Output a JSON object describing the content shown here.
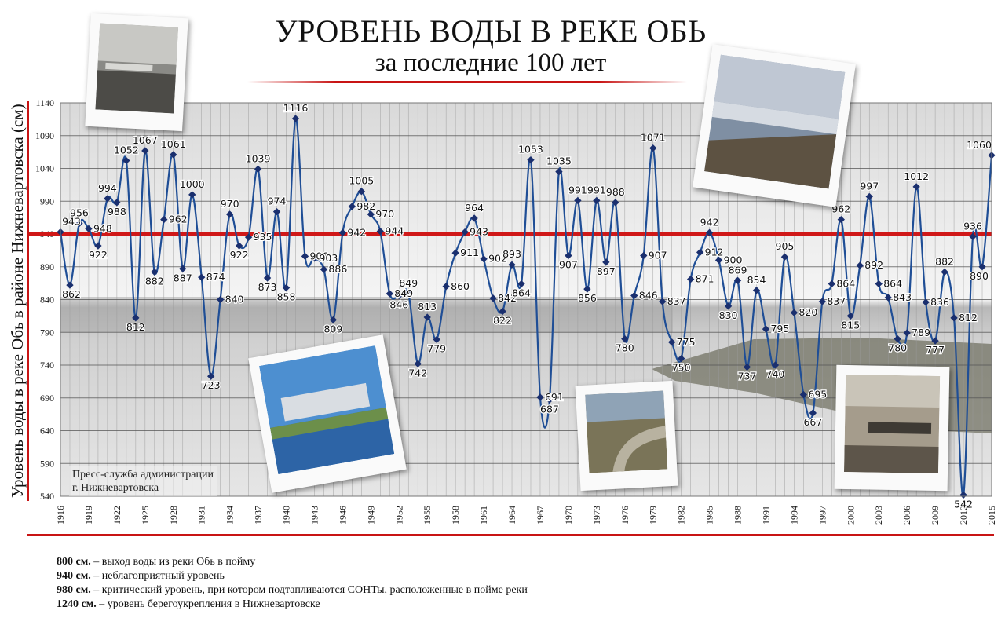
{
  "title": "УРОВЕНЬ ВОДЫ В РЕКЕ ОБЬ",
  "subtitle": "за последние 100 лет",
  "credit": {
    "line1": "Пресс-служба администрации",
    "line2": "г. Нижневартовска"
  },
  "legend": [
    {
      "value": "800 см.",
      "text": " – выход воды из реки Обь в пойму"
    },
    {
      "value": "940 см.",
      "text": " – неблагоприятный уровень"
    },
    {
      "value": "980 см.",
      "text": " – критический уровень, при котором подтапливаются СОНТы, расположенные в пойме реки"
    },
    {
      "value": "1240 см.",
      "text": " – уровень берегоукрепления в Нижневартовске"
    }
  ],
  "colors": {
    "line": "#1f4e96",
    "marker": "#1a2f6e",
    "threshold": "#d01818",
    "accent": "#c81414"
  },
  "chart_data": {
    "type": "line",
    "title": "УРОВЕНЬ ВОДЫ В РЕКЕ ОБЬ за последние 100 лет",
    "xlabel": "",
    "ylabel": "Уровень воды в реке Обь в районе Нижневартовска (см)",
    "ylim": [
      540,
      1140
    ],
    "yticks": [
      540,
      590,
      640,
      690,
      740,
      790,
      840,
      890,
      940,
      990,
      1040,
      1090,
      1140
    ],
    "xlim": [
      1916,
      2015
    ],
    "xticks": [
      1916,
      1919,
      1922,
      1925,
      1928,
      1931,
      1934,
      1937,
      1940,
      1943,
      1946,
      1949,
      1952,
      1955,
      1958,
      1961,
      1964,
      1967,
      1970,
      1973,
      1976,
      1979,
      1982,
      1985,
      1988,
      1991,
      1994,
      1997,
      2000,
      2003,
      2006,
      2009,
      2012,
      2015
    ],
    "grid": true,
    "threshold_line": 940,
    "series": [
      {
        "x": [
          1916,
          1917,
          1918,
          1919,
          1920,
          1921,
          1922,
          1923,
          1924,
          1925,
          1926,
          1927,
          1928,
          1929,
          1930,
          1931,
          1932,
          1933,
          1934,
          1935,
          1936,
          1937,
          1938,
          1939,
          1940,
          1941,
          1942,
          1943,
          1944,
          1945,
          1946,
          1947,
          1948,
          1949,
          1950,
          1951,
          1952,
          1953,
          1954,
          1955,
          1956,
          1957,
          1958,
          1959,
          1960,
          1961,
          1962,
          1963,
          1964,
          1965,
          1966,
          1967,
          1968,
          1969,
          1970,
          1971,
          1972,
          1973,
          1974,
          1975,
          1976,
          1977,
          1978,
          1979,
          1980,
          1981,
          1982,
          1983,
          1984,
          1985,
          1986,
          1987,
          1988,
          1989,
          1990,
          1991,
          1992,
          1993,
          1994,
          1995,
          1996,
          1997,
          1998,
          1999,
          2000,
          2001,
          2002,
          2003,
          2004,
          2005,
          2006,
          2007,
          2008,
          2009,
          2010,
          2011,
          2012,
          2013,
          2014,
          2015
        ],
        "values": [
          943,
          862,
          956,
          948,
          922,
          994,
          988,
          1052,
          812,
          1067,
          882,
          962,
          1061,
          887,
          1000,
          874,
          723,
          840,
          970,
          922,
          935,
          1039,
          873,
          974,
          858,
          1116,
          906,
          903,
          886,
          809,
          942,
          982,
          1005,
          970,
          944,
          849,
          846,
          849,
          742,
          813,
          779,
          860,
          911,
          943,
          964,
          902,
          842,
          822,
          893,
          864,
          1053,
          691,
          687,
          1035,
          907,
          991,
          856,
          991,
          897,
          988,
          780,
          846,
          907,
          1071,
          837,
          775,
          750,
          871,
          912,
          942,
          900,
          830,
          869,
          737,
          854,
          795,
          740,
          905,
          820,
          695,
          667,
          837,
          864,
          962,
          815,
          892,
          997,
          864,
          843,
          780,
          789,
          1012,
          836,
          777,
          882,
          812,
          542,
          936,
          890,
          1060
        ],
        "point_labels": [
          "943",
          "862",
          "956",
          "948",
          "922",
          "994",
          "988",
          "1052",
          "812",
          "1067",
          "882",
          "962",
          "1061",
          "887",
          "1000",
          "874",
          "723",
          "840",
          "970",
          "922",
          "935",
          "1039",
          "873",
          "974",
          "858",
          "1116",
          "906",
          "903",
          "886",
          "809",
          "942",
          "982",
          "1005",
          "970",
          "944",
          "849",
          "846",
          "849",
          "742",
          "813",
          "779",
          "860",
          "911",
          "943",
          "964",
          "902",
          "842",
          "822",
          "893",
          "864",
          "1053",
          "691",
          "687",
          "1035",
          "907",
          "991",
          "856",
          "991",
          "897",
          "988",
          "780",
          "846",
          "907",
          "1071",
          "837",
          "775",
          "750",
          "871",
          "912",
          "942",
          "900",
          "830",
          "869",
          "737",
          "854",
          "795",
          "740",
          "905",
          "820",
          "695",
          "667",
          "837",
          "864",
          "962",
          "815",
          "892",
          "997",
          "864",
          "843",
          "780",
          "789",
          "1012",
          "836",
          "777",
          "882",
          "812",
          "542",
          "936",
          "890",
          "1060"
        ]
      }
    ]
  }
}
